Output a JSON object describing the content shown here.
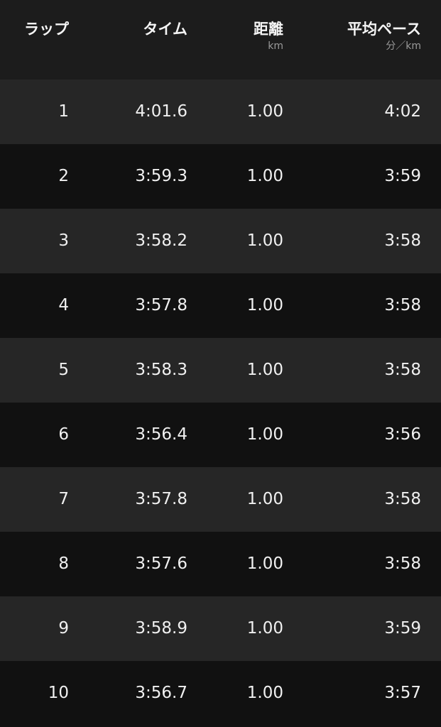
{
  "header": {
    "lap": "ラップ",
    "time": "タイム",
    "distance": "距離",
    "distance_unit": "km",
    "pace": "平均ペース",
    "pace_unit": "分／km"
  },
  "rows": [
    {
      "lap": "1",
      "time": "4:01.6",
      "distance": "1.00",
      "pace": "4:02"
    },
    {
      "lap": "2",
      "time": "3:59.3",
      "distance": "1.00",
      "pace": "3:59"
    },
    {
      "lap": "3",
      "time": "3:58.2",
      "distance": "1.00",
      "pace": "3:58"
    },
    {
      "lap": "4",
      "time": "3:57.8",
      "distance": "1.00",
      "pace": "3:58"
    },
    {
      "lap": "5",
      "time": "3:58.3",
      "distance": "1.00",
      "pace": "3:58"
    },
    {
      "lap": "6",
      "time": "3:56.4",
      "distance": "1.00",
      "pace": "3:56"
    },
    {
      "lap": "7",
      "time": "3:57.8",
      "distance": "1.00",
      "pace": "3:58"
    },
    {
      "lap": "8",
      "time": "3:57.6",
      "distance": "1.00",
      "pace": "3:58"
    },
    {
      "lap": "9",
      "time": "3:58.9",
      "distance": "1.00",
      "pace": "3:59"
    },
    {
      "lap": "10",
      "time": "3:56.7",
      "distance": "1.00",
      "pace": "3:57"
    }
  ]
}
